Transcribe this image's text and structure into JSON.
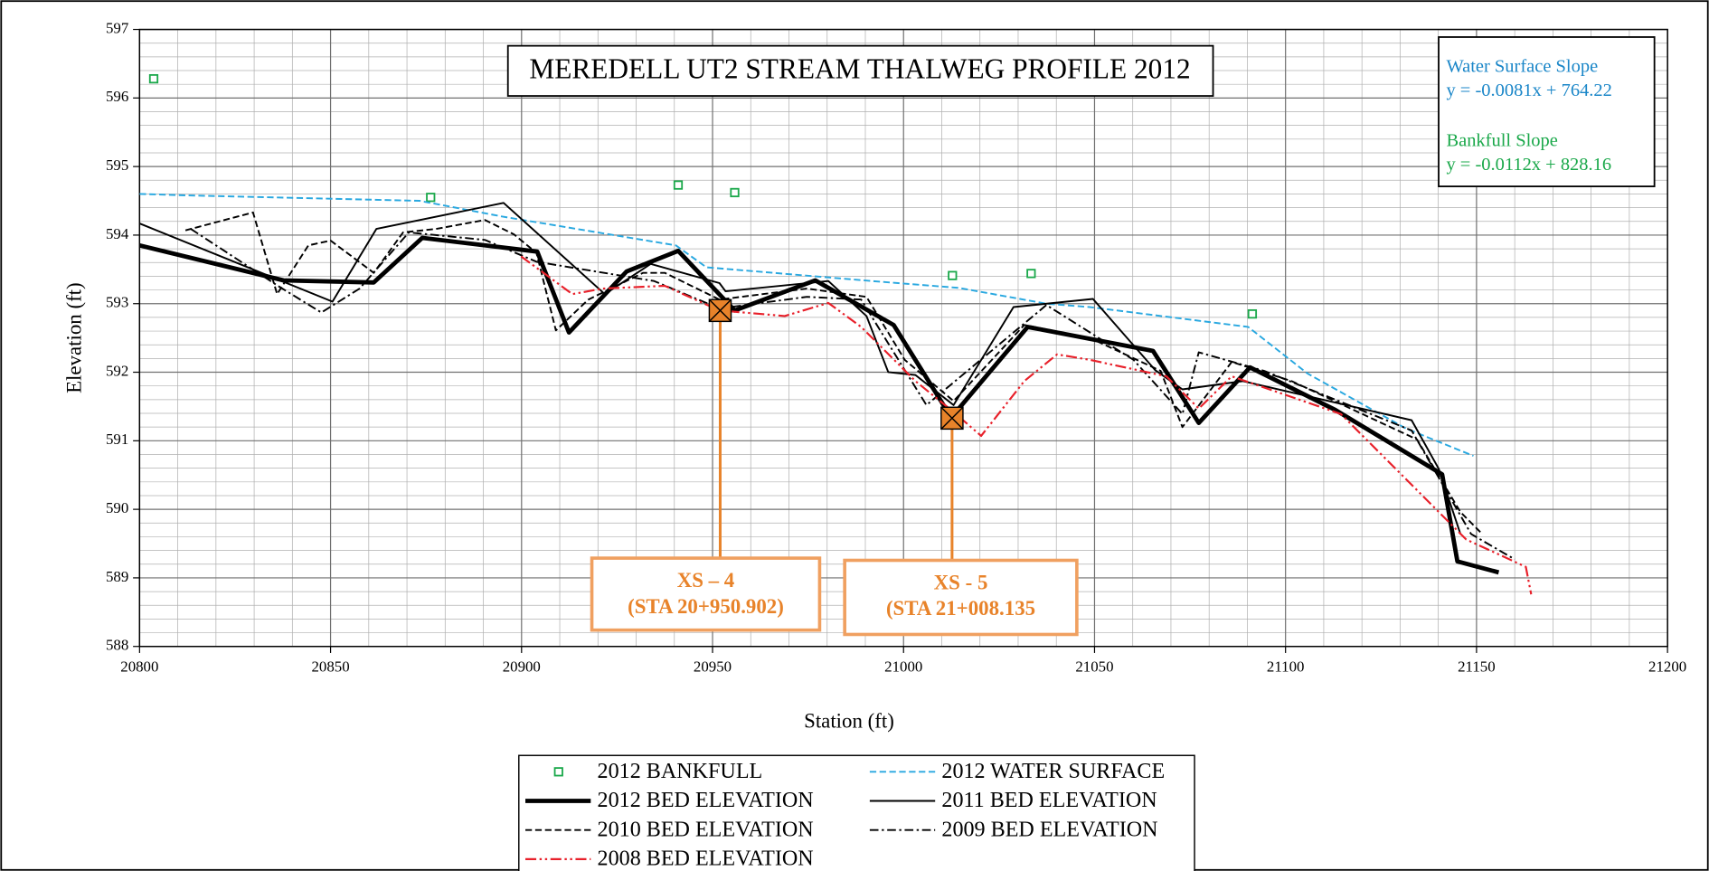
{
  "chart_data": {
    "type": "line",
    "title": "MEREDELL UT2 STREAM THALWEG PROFILE 2012",
    "xlabel": "Station (ft)",
    "ylabel": "Elevation (ft)",
    "xlim": [
      20800,
      21200
    ],
    "xticks": [
      20800,
      20850,
      20900,
      20950,
      21000,
      21050,
      21100,
      21150,
      21200
    ],
    "ylim": [
      588,
      597
    ],
    "yticks": [
      588,
      589,
      590,
      591,
      592,
      593,
      594,
      595,
      596,
      597
    ],
    "grid": true,
    "minor_grid": true,
    "legend": "bottom",
    "equations": [
      {
        "name": "Water Surface Slope",
        "text": "y = -0.0081x + 764.22",
        "color": "#1a86c8"
      },
      {
        "name": "Bankfull Slope",
        "text": "y = -0.0112x + 828.16",
        "color": "#1aa84a"
      }
    ],
    "cross_sections": [
      {
        "name": "XS – 4",
        "station": "(STA 20+950.902)",
        "x": 20952,
        "y": 592.9
      },
      {
        "name": "XS - 5",
        "station": "(STA 21+008.135",
        "x": 21012.7,
        "y": 591.33
      }
    ],
    "series": [
      {
        "name": "2012 BANKFULL",
        "style": "markers",
        "color": "#1aa84a",
        "x": [
          20803.7,
          20876.2,
          20941,
          20955.8,
          21012.8,
          21033.4,
          21091.3
        ],
        "values": [
          596.28,
          594.55,
          594.73,
          594.62,
          593.41,
          593.44,
          592.85
        ]
      },
      {
        "name": "2012 WATER SURFACE",
        "style": "dashed",
        "color": "#29a8e0",
        "x": [
          20800,
          20812,
          20873.3,
          20895,
          20940.4,
          20948.4,
          20991.7,
          21014.5,
          21037.4,
          21048.8,
          21090.2,
          21105.8,
          21131.5,
          21149.2
        ],
        "values": [
          594.6,
          594.58,
          594.5,
          594.27,
          593.85,
          593.53,
          593.33,
          593.23,
          593.0,
          592.95,
          592.66,
          591.98,
          591.18,
          590.78
        ]
      },
      {
        "name": "2012 BED ELEVATION",
        "style": "bold",
        "color": "#000000",
        "x": [
          20800,
          20837.7,
          20861.3,
          20874,
          20904.1,
          20912.4,
          20927.5,
          20941,
          20955.8,
          20976.9,
          20997.4,
          21012.5,
          21032.5,
          21065.3,
          21077.3,
          21090.7,
          21113,
          21141,
          21145,
          21155.8
        ],
        "values": [
          593.85,
          593.34,
          593.31,
          593.96,
          593.76,
          592.58,
          593.47,
          593.77,
          592.9,
          593.34,
          592.69,
          591.34,
          592.66,
          592.31,
          591.26,
          592.07,
          591.45,
          590.51,
          589.24,
          589.08
        ]
      },
      {
        "name": "2011 BED ELEVATION",
        "style": "solid",
        "color": "#000000",
        "x": [
          20800,
          20850.5,
          20862,
          20895.3,
          20921.8,
          20933.8,
          20951.8,
          20953.4,
          20980.3,
          20990.3,
          20996,
          21003.1,
          21013.1,
          21028.8,
          21049.6,
          21065.9,
          21073,
          21088.8,
          21133,
          21140.1,
          21145.8
        ],
        "values": [
          594.17,
          593.03,
          594.09,
          594.47,
          593.14,
          593.58,
          593.3,
          593.18,
          593.33,
          592.82,
          592.0,
          591.96,
          591.52,
          592.95,
          593.07,
          592.03,
          591.75,
          591.87,
          591.3,
          590.59,
          589.64
        ]
      },
      {
        "name": "2010 BED ELEVATION",
        "style": "dashed",
        "color": "#000000",
        "x": [
          20812,
          20829.7,
          20836,
          20844.2,
          20850,
          20861.3,
          20869,
          20877.6,
          20890.4,
          20898,
          20903.9,
          20909,
          20917.5,
          20931.8,
          20937.5,
          20951.8,
          20974.7,
          20990.3,
          21000.3,
          21013.1,
          21031.6,
          21048.8,
          21067.3,
          21073,
          21085.9,
          21101.6,
          21134.4,
          21145.8,
          21151.5
        ],
        "values": [
          594.07,
          594.33,
          593.14,
          593.85,
          593.92,
          593.45,
          594.04,
          594.09,
          594.22,
          594.01,
          593.74,
          592.61,
          593.06,
          593.45,
          593.45,
          593.06,
          593.22,
          593.1,
          592.18,
          591.58,
          592.69,
          592.5,
          592.02,
          591.2,
          592.15,
          591.87,
          591.02,
          589.96,
          589.64
        ]
      },
      {
        "name": "2009 BED ELEVATION",
        "style": "dash-dot",
        "color": "#000000",
        "x": [
          20813.4,
          20836.2,
          20847.6,
          20857.6,
          20870.5,
          20890.4,
          20904,
          20934.7,
          20951.8,
          20974.7,
          20988.9,
          21006,
          21037.4,
          21060.2,
          21073,
          21077.3,
          21094.4,
          21133,
          21148.6,
          21160
        ],
        "values": [
          594.09,
          593.26,
          592.87,
          593.22,
          594.04,
          593.93,
          593.61,
          593.33,
          592.93,
          593.1,
          593.06,
          591.52,
          592.98,
          592.18,
          591.39,
          592.29,
          592.02,
          591.15,
          589.64,
          589.27
        ]
      },
      {
        "name": "2008 BED ELEVATION",
        "style": "dash-dot-dot",
        "color": "#e8202a",
        "x": [
          20899.9,
          20913.3,
          20921.3,
          20937.5,
          20951.8,
          20968.9,
          20980.3,
          20988.9,
          21003.1,
          21013.1,
          21020.3,
          21031.6,
          21040.2,
          21048.8,
          21068.8,
          21077.3,
          21085.9,
          21114.5,
          21134.4,
          21147.3,
          21162.9,
          21164.3
        ],
        "values": [
          593.69,
          593.14,
          593.22,
          593.26,
          592.9,
          592.82,
          593.01,
          592.66,
          591.87,
          591.42,
          591.07,
          591.87,
          592.26,
          592.18,
          591.94,
          591.47,
          591.94,
          591.39,
          590.28,
          589.56,
          589.16,
          588.76
        ]
      }
    ]
  }
}
